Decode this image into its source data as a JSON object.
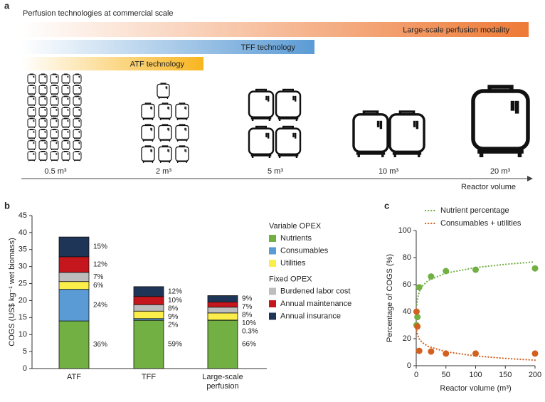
{
  "panel_a": {
    "label": "a",
    "title": "Perfusion technologies at commercial scale",
    "bars": [
      {
        "label": "Large-scale perfusion modality",
        "color": "#ee7a36"
      },
      {
        "label": "TFF technology",
        "color": "#5b9bd5"
      },
      {
        "label": "ATF technology",
        "color": "#f8b51f"
      }
    ],
    "volumes": [
      "0.5 m³",
      "2 m³",
      "5 m³",
      "10 m³",
      "20 m³"
    ],
    "axis_label": "Reactor volume"
  },
  "chart_data": [
    {
      "type": "bar",
      "stacked": true,
      "panel": "b",
      "y_label": "COGS (US$ kg⁻¹ wet biomass)",
      "categories": [
        "ATF",
        "TFF",
        "Large-scale perfusion"
      ],
      "ylim": [
        0,
        45
      ],
      "yticks": [
        0,
        5,
        10,
        15,
        20,
        25,
        30,
        35,
        40,
        45
      ],
      "series_groups": [
        {
          "title": "Variable OPEX",
          "series": [
            {
              "name": "Nutrients",
              "color": "#72b043",
              "values": [
                14.0,
                14.2,
                14.2
              ],
              "share_labels": [
                "36%",
                "59%",
                "66%"
              ]
            },
            {
              "name": "Consumables",
              "color": "#5b9bd5",
              "values": [
                9.3,
                0.5,
                0.06
              ],
              "share_labels": [
                "24%",
                "2%",
                "0.3%"
              ]
            },
            {
              "name": "Utilities",
              "color": "#fcee4a",
              "values": [
                2.3,
                2.2,
                2.1
              ],
              "share_labels": [
                "6%",
                "9%",
                "10%"
              ]
            }
          ]
        },
        {
          "title": "Fixed OPEX",
          "series": [
            {
              "name": "Burdened labor cost",
              "color": "#bdbdbd",
              "values": [
                2.7,
                1.9,
                1.7
              ],
              "share_labels": [
                "7%",
                "8%",
                "8%"
              ]
            },
            {
              "name": "Annual maintenance",
              "color": "#c5161d",
              "values": [
                4.6,
                2.4,
                1.5
              ],
              "share_labels": [
                "12%",
                "10%",
                "7%"
              ]
            },
            {
              "name": "Annual insurance",
              "color": "#1f3557",
              "values": [
                5.8,
                2.9,
                1.9
              ],
              "share_labels": [
                "15%",
                "12%",
                "9%"
              ]
            }
          ]
        }
      ]
    },
    {
      "type": "scatter",
      "panel": "c",
      "x_label": "Reactor volume (m³)",
      "y_label": "Percentage of COGS (%)",
      "xlim": [
        0,
        200
      ],
      "xticks": [
        0,
        50,
        100,
        150,
        200
      ],
      "ylim": [
        0,
        100
      ],
      "yticks": [
        0,
        20,
        40,
        60,
        80,
        100
      ],
      "series": [
        {
          "name": "Nutrient percentage",
          "color": "#72b043",
          "x": [
            0.5,
            2,
            5,
            25,
            50,
            100,
            200
          ],
          "values": [
            30,
            36,
            58,
            66,
            70,
            71,
            72
          ],
          "fit_x": [
            1,
            2,
            5,
            10,
            20,
            50,
            100,
            150,
            200
          ],
          "fit_values": [
            45,
            49.2,
            54.7,
            58.8,
            63,
            68.5,
            72.6,
            75,
            76.8
          ]
        },
        {
          "name": "Consumables + utilities",
          "color": "#d2601f",
          "x": [
            0.5,
            2,
            5,
            25,
            50,
            100,
            200
          ],
          "values": [
            40,
            29,
            11,
            10.5,
            9,
            9,
            9
          ],
          "fit_x": [
            0,
            2,
            5,
            10,
            20,
            50,
            100,
            150,
            200
          ],
          "fit_values": [
            28,
            23.1,
            19.9,
            17.2,
            14.3,
            10.3,
            7.2,
            5.4,
            4.1
          ]
        }
      ]
    }
  ]
}
